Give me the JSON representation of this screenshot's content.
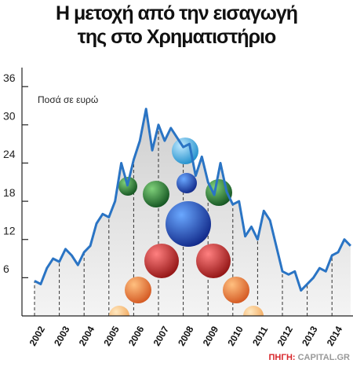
{
  "chart_data": {
    "type": "line",
    "title": "Η μετοχή από την εισαγωγή της στο Χρηματιστήριο",
    "y_label": "Ποσά σε ευρώ",
    "source_label": "ΠΗΓΗ:",
    "source": "CAPITAL.GR",
    "categories": [
      "2002",
      null,
      null,
      null,
      "2003",
      null,
      null,
      null,
      "2004",
      null,
      null,
      null,
      "2005",
      null,
      null,
      null,
      "2006",
      null,
      null,
      null,
      "2007",
      null,
      null,
      null,
      "2008",
      null,
      null,
      null,
      "2009",
      null,
      null,
      null,
      "2010",
      null,
      null,
      null,
      "2011",
      null,
      null,
      null,
      "2012",
      null,
      null,
      null,
      "2013",
      null,
      null,
      null,
      "2014",
      null,
      null,
      null
    ],
    "series": [
      {
        "name": "Μετοχή",
        "color": "#2a74c4",
        "values": [
          5.5,
          5.0,
          7.5,
          9.0,
          8.5,
          10.5,
          9.5,
          8.0,
          10.0,
          11.0,
          14.5,
          16.0,
          15.5,
          18.0,
          24.0,
          20.5,
          24.5,
          27.5,
          32.5,
          26.0,
          30.0,
          27.5,
          29.5,
          28.0,
          26.5,
          27.0,
          22.0,
          25.0,
          21.0,
          19.0,
          24.0,
          19.5,
          17.5,
          18.0,
          12.5,
          14.0,
          12.0,
          16.5,
          15.0,
          11.0,
          7.0,
          6.5,
          7.0,
          4.0,
          5.0,
          6.0,
          7.5,
          7.0,
          9.5,
          10.0,
          12.0,
          11.0
        ]
      }
    ],
    "ylim": [
      0,
      38
    ],
    "yticks": [
      6,
      12,
      18,
      24,
      30,
      36
    ]
  }
}
